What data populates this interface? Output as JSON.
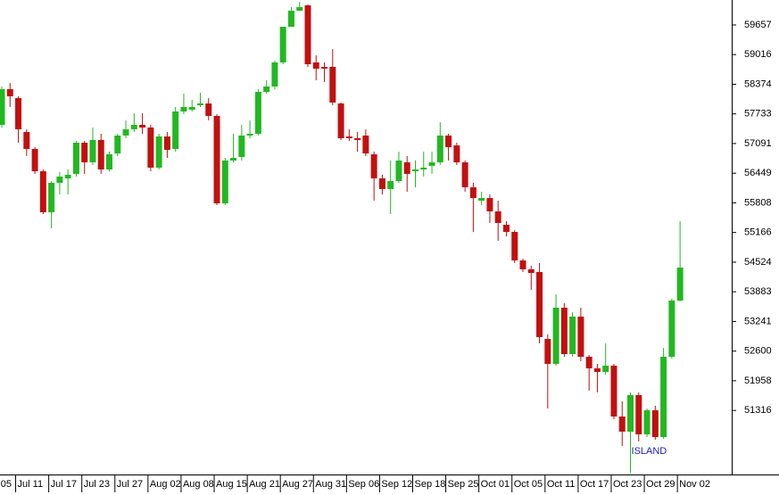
{
  "chart_data": {
    "type": "candlestick",
    "categories": [
      "05",
      null,
      "Jul 11",
      null,
      null,
      null,
      "Jul 17",
      null,
      null,
      null,
      "Jul 23",
      null,
      null,
      null,
      "Jul 27",
      null,
      null,
      null,
      "Aug 02",
      null,
      null,
      null,
      "Aug 08",
      null,
      null,
      null,
      "Aug 15",
      null,
      null,
      null,
      "Aug 21",
      null,
      null,
      null,
      "Aug 27",
      null,
      null,
      null,
      "Aug 31",
      null,
      null,
      null,
      "Sep 06",
      null,
      null,
      null,
      "Sep 12",
      null,
      null,
      null,
      "Sep 18",
      null,
      null,
      null,
      "Sep 25",
      null,
      null,
      null,
      "Oct 01",
      null,
      null,
      null,
      "Oct 05",
      null,
      null,
      null,
      "Oct 11",
      null,
      null,
      null,
      "Oct 17",
      null,
      null,
      null,
      "Oct 23",
      null,
      null,
      null,
      "Oct 29",
      null,
      null,
      null,
      "Nov 02"
    ],
    "open": [
      57495,
      58267,
      58074,
      57341,
      56974,
      56491,
      55604,
      56241,
      56337,
      56434,
      57109,
      56684,
      57167,
      56530,
      56877,
      57264,
      57399,
      57495,
      57437,
      56569,
      57244,
      56974,
      57785,
      57823,
      57920,
      57958,
      57688,
      55797,
      56723,
      56800,
      57264,
      57302,
      58209,
      58325,
      58846,
      59618,
      59965,
      60081,
      58846,
      58750,
      58750,
      57958,
      57244,
      57206,
      57264,
      56858,
      56337,
      56106,
      56279,
      56684,
      56491,
      56530,
      56607,
      56684,
      57264,
      57051,
      56684,
      56144,
      55855,
      55912,
      55623,
      55333,
      55179,
      54561,
      54369,
      54311,
      52863,
      52323,
      53539,
      52535,
      53346,
      52477,
      52226,
      52149,
      52284,
      51184,
      50856,
      51647,
      50798,
      51319,
      50740,
      52477,
      53693
    ],
    "high": [
      58325,
      58402,
      58113,
      57399,
      57013,
      56530,
      56279,
      56472,
      56530,
      57148,
      57148,
      57437,
      57302,
      56916,
      57302,
      57592,
      57746,
      57746,
      57495,
      57302,
      57341,
      57881,
      58171,
      58036,
      58190,
      58074,
      57727,
      56781,
      57302,
      57495,
      57592,
      58267,
      58460,
      58885,
      59618,
      60043,
      60158,
      60101,
      59000,
      58846,
      59136,
      57977,
      57399,
      57341,
      57399,
      56916,
      56414,
      56723,
      56916,
      56820,
      56723,
      56916,
      56916,
      57553,
      57302,
      57109,
      56723,
      56241,
      56048,
      55990,
      55855,
      55411,
      55218,
      54600,
      54446,
      54504,
      52960,
      53828,
      53635,
      53442,
      53539,
      52516,
      52323,
      52767,
      52323,
      51512,
      51705,
      51705,
      51358,
      51416,
      52670,
      53732,
      55411
    ],
    "low": [
      57437,
      57881,
      57109,
      56820,
      56434,
      55565,
      55256,
      55990,
      55990,
      56376,
      56434,
      56627,
      56434,
      56491,
      56820,
      57206,
      57341,
      57302,
      56491,
      56530,
      56781,
      56916,
      57727,
      57785,
      57881,
      57592,
      55758,
      55758,
      56684,
      56723,
      57206,
      57264,
      58171,
      58267,
      58807,
      59618,
      59965,
      58750,
      58460,
      58421,
      57920,
      57167,
      57148,
      56916,
      56820,
      55855,
      55990,
      55565,
      56241,
      56048,
      56144,
      56376,
      56434,
      56627,
      56723,
      56627,
      56048,
      55179,
      55758,
      55372,
      54986,
      55082,
      54504,
      54311,
      53925,
      52767,
      51358,
      52284,
      52477,
      52477,
      52381,
      51744,
      51705,
      52091,
      51126,
      50547,
      49968,
      50644,
      50740,
      50682,
      50701,
      52438,
      53674
    ],
    "close": [
      58267,
      58113,
      57399,
      56974,
      56491,
      55604,
      56241,
      56376,
      56414,
      57109,
      56684,
      57167,
      56530,
      56858,
      57264,
      57399,
      57495,
      57437,
      56569,
      57244,
      56955,
      57785,
      57881,
      57881,
      57958,
      57688,
      55797,
      56723,
      56781,
      57264,
      57302,
      58209,
      58325,
      58846,
      59618,
      59965,
      60043,
      58807,
      58711,
      58711,
      57977,
      57206,
      57206,
      57167,
      56877,
      56337,
      56106,
      56279,
      56723,
      56434,
      56530,
      56569,
      56684,
      57264,
      57013,
      56684,
      56144,
      55912,
      55912,
      55623,
      55372,
      55179,
      54561,
      54369,
      54291,
      52902,
      52323,
      53539,
      52535,
      53346,
      52477,
      52226,
      52149,
      52284,
      51184,
      50856,
      51647,
      50798,
      51319,
      50740,
      52477,
      53693,
      54407
    ],
    "up_color": "#22b822",
    "down_color": "#c21010",
    "ylim": [
      49968,
      60197
    ],
    "yticks": [
      59657,
      59016,
      58374,
      57733,
      57091,
      56449,
      55808,
      55166,
      54524,
      53883,
      53241,
      52600,
      51958,
      51316
    ],
    "annotation": "ISLAND"
  }
}
